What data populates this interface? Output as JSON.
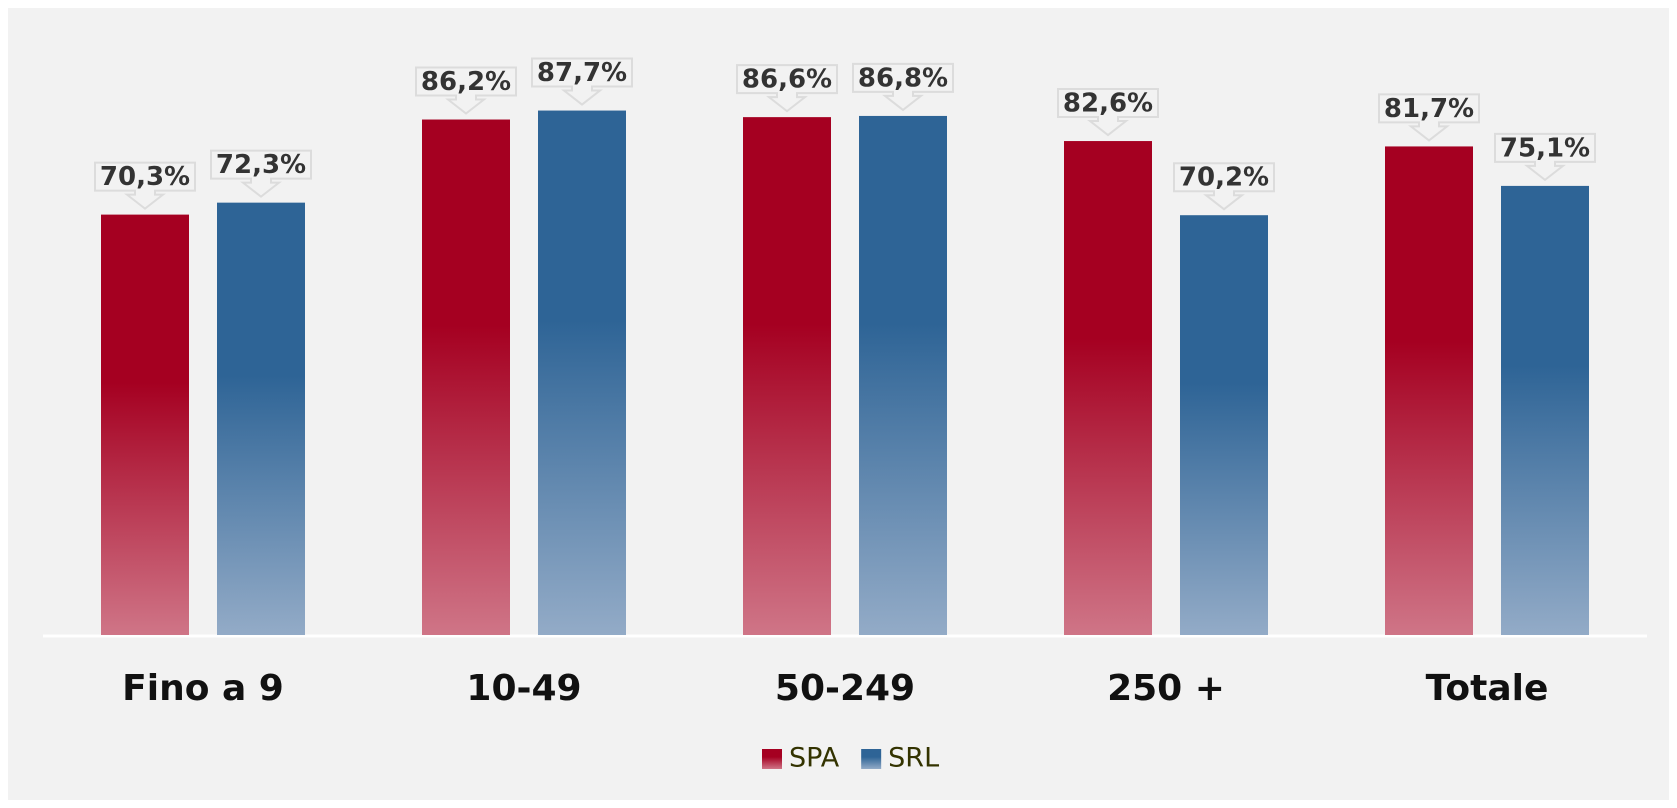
{
  "chart_data": {
    "type": "bar",
    "categories": [
      "Fino a 9",
      "10-49",
      "50-249",
      "250 +",
      "Totale"
    ],
    "series": [
      {
        "name": "SPA",
        "color": "#a50021",
        "values": [
          70.3,
          86.2,
          86.6,
          82.6,
          81.7
        ],
        "value_labels": [
          "70,3%",
          "86,2%",
          "86,6%",
          "82,6%",
          "81,7%"
        ]
      },
      {
        "name": "SRL",
        "color": "#2e6496",
        "values": [
          72.3,
          87.7,
          86.8,
          70.2,
          75.1
        ],
        "value_labels": [
          "72,3%",
          "87,7%",
          "86,8%",
          "70,2%",
          "75,1%"
        ]
      }
    ],
    "ylim": [
      0,
      100
    ]
  }
}
